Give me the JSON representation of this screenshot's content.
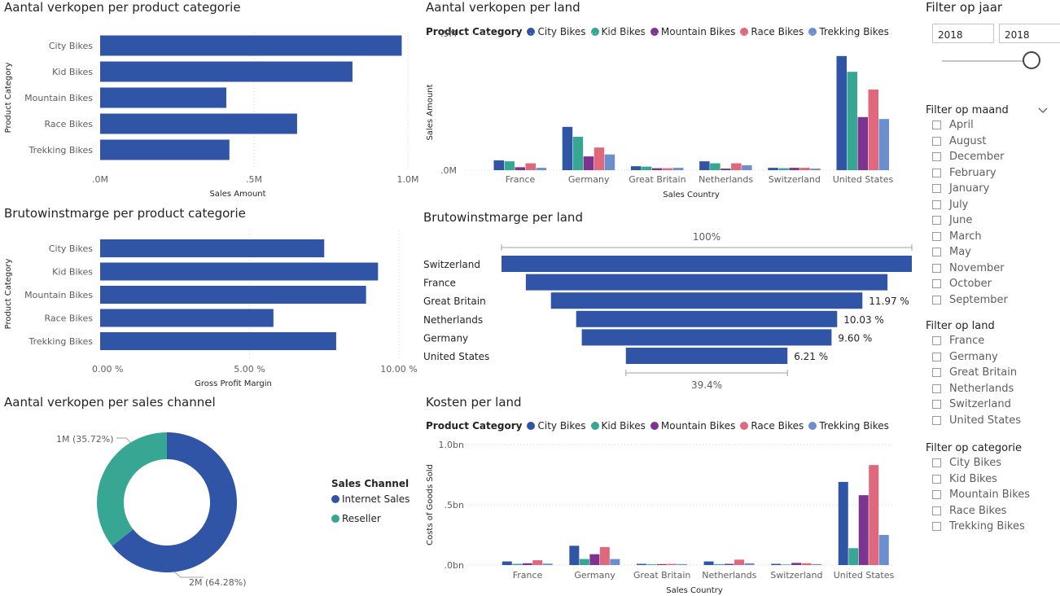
{
  "colors": {
    "city": "#3054a6",
    "kid": "#37a794",
    "mountain": "#7b3590",
    "race": "#e0687c",
    "trekking": "#6b8fce",
    "internet": "#3054a6",
    "reseller": "#37a794",
    "bar": "#3054a6"
  },
  "panels": {
    "p1": {
      "title": "Aantal verkopen per product categorie"
    },
    "p2": {
      "title": "Aantal verkopen per land"
    },
    "p3": {
      "title": "Brutowinstmarge per product categorie"
    },
    "p4": {
      "title": "Brutowinstmarge per land"
    },
    "p5": {
      "title": "Aantal verkopen per sales channel"
    },
    "p6": {
      "title": "Kosten per land"
    }
  },
  "chart_data": [
    {
      "id": "sales_by_category",
      "type": "bar",
      "orientation": "horizontal",
      "title": "Aantal verkopen per product categorie",
      "categories": [
        "City Bikes",
        "Kid Bikes",
        "Mountain Bikes",
        "Race Bikes",
        "Trekking Bikes"
      ],
      "values": [
        0.98,
        0.82,
        0.41,
        0.64,
        0.42
      ],
      "unit": "M",
      "xlabel": "Sales Amount",
      "ylabel": "Product Category",
      "ticks": [
        ".0M",
        ".5M",
        "1.0M"
      ],
      "xlim": [
        0,
        1.0
      ],
      "grid": true
    },
    {
      "id": "sales_by_country",
      "type": "bar",
      "title": "Aantal verkopen per land",
      "legend_title": "Product Category",
      "categories": [
        "France",
        "Germany",
        "Great Britain",
        "Netherlands",
        "Switzerland",
        "United States"
      ],
      "series": [
        {
          "name": "City Bikes",
          "color": "#3054a6",
          "values": [
            0.05,
            0.22,
            0.02,
            0.045,
            0.012,
            0.58
          ]
        },
        {
          "name": "Kid Bikes",
          "color": "#37a794",
          "values": [
            0.045,
            0.17,
            0.018,
            0.035,
            0.01,
            0.5
          ]
        },
        {
          "name": "Mountain Bikes",
          "color": "#7b3590",
          "values": [
            0.015,
            0.07,
            0.01,
            0.008,
            0.012,
            0.27
          ]
        },
        {
          "name": "Race Bikes",
          "color": "#e0687c",
          "values": [
            0.035,
            0.115,
            0.01,
            0.035,
            0.012,
            0.41
          ]
        },
        {
          "name": "Trekking Bikes",
          "color": "#6b8fce",
          "values": [
            0.012,
            0.08,
            0.012,
            0.025,
            0.008,
            0.26
          ]
        }
      ],
      "xlabel": "Sales Country",
      "ylabel": "Sales Amount",
      "ticks": [
        ".0M",
        ".5M"
      ],
      "ylim": [
        0,
        0.6
      ],
      "grid": true
    },
    {
      "id": "margin_by_category",
      "type": "bar",
      "orientation": "horizontal",
      "title": "Brutowinstmarge per product categorie",
      "categories": [
        "City Bikes",
        "Kid Bikes",
        "Mountain Bikes",
        "Race Bikes",
        "Trekking Bikes"
      ],
      "values": [
        7.5,
        9.3,
        8.9,
        5.8,
        7.9
      ],
      "unit": "%",
      "xlabel": "Gross Profit Margin",
      "ylabel": "Product Category",
      "ticks": [
        "0.00 %",
        "5.00 %",
        "10.00 %"
      ],
      "xlim": [
        0,
        10
      ],
      "grid": true
    },
    {
      "id": "margin_by_country",
      "type": "bar",
      "subtype": "funnel",
      "title": "Brutowinstmarge per land",
      "categories": [
        "Switzerland",
        "France",
        "Great Britain",
        "Netherlands",
        "Germany",
        "United States"
      ],
      "values": [
        15.77,
        13.9,
        11.97,
        10.03,
        9.6,
        6.21
      ],
      "data_labels": [
        "",
        "",
        "11.97 %",
        "10.03 %",
        "9.60 %",
        "6.21 %"
      ],
      "top_label": "100%",
      "bottom_label": "39.4%"
    },
    {
      "id": "sales_by_channel",
      "type": "pie",
      "subtype": "donut",
      "title": "Aantal verkopen per sales channel",
      "legend_title": "Sales Channel",
      "slices": [
        {
          "name": "Internet Sales",
          "value": 64.28,
          "label": "2M (64.28%)",
          "color": "#3054a6"
        },
        {
          "name": "Reseller",
          "value": 35.72,
          "label": "1M (35.72%)",
          "color": "#37a794"
        }
      ],
      "legend_placement": "right"
    },
    {
      "id": "cost_by_country",
      "type": "bar",
      "title": "Kosten per land",
      "legend_title": "Product Category",
      "categories": [
        "France",
        "Germany",
        "Great Britain",
        "Netherlands",
        "Switzerland",
        "United States"
      ],
      "series": [
        {
          "name": "City Bikes",
          "color": "#3054a6",
          "values": [
            0.03,
            0.16,
            0.01,
            0.03,
            0.01,
            0.69
          ]
        },
        {
          "name": "Kid Bikes",
          "color": "#37a794",
          "values": [
            0.01,
            0.05,
            0.006,
            0.008,
            0.005,
            0.14
          ]
        },
        {
          "name": "Mountain Bikes",
          "color": "#7b3590",
          "values": [
            0.015,
            0.09,
            0.008,
            0.01,
            0.018,
            0.58
          ]
        },
        {
          "name": "Race Bikes",
          "color": "#e0687c",
          "values": [
            0.04,
            0.15,
            0.01,
            0.045,
            0.015,
            0.83
          ]
        },
        {
          "name": "Trekking Bikes",
          "color": "#6b8fce",
          "values": [
            0.012,
            0.05,
            0.008,
            0.015,
            0.008,
            0.25
          ]
        }
      ],
      "xlabel": "Sales Country",
      "ylabel": "Costs of Goods Sold",
      "ticks": [
        ".0bn",
        ".5bn",
        "1.0bn"
      ],
      "ylim": [
        0,
        1.0
      ],
      "grid": true
    }
  ],
  "filters": {
    "year": {
      "title": "Filter op jaar",
      "from": "2018",
      "to": "2018"
    },
    "month": {
      "title": "Filter op maand",
      "items": [
        "April",
        "August",
        "December",
        "February",
        "January",
        "July",
        "June",
        "March",
        "May",
        "November",
        "October",
        "September"
      ]
    },
    "country": {
      "title": "Filter op land",
      "items": [
        "France",
        "Germany",
        "Great Britain",
        "Netherlands",
        "Switzerland",
        "United States"
      ]
    },
    "category": {
      "title": "Filter op categorie",
      "items": [
        "City Bikes",
        "Kid Bikes",
        "Mountain Bikes",
        "Race Bikes",
        "Trekking Bikes"
      ]
    }
  },
  "icons": {
    "month_expand": "chevron-down-icon",
    "slider_handle": "slider-handle-icon"
  }
}
